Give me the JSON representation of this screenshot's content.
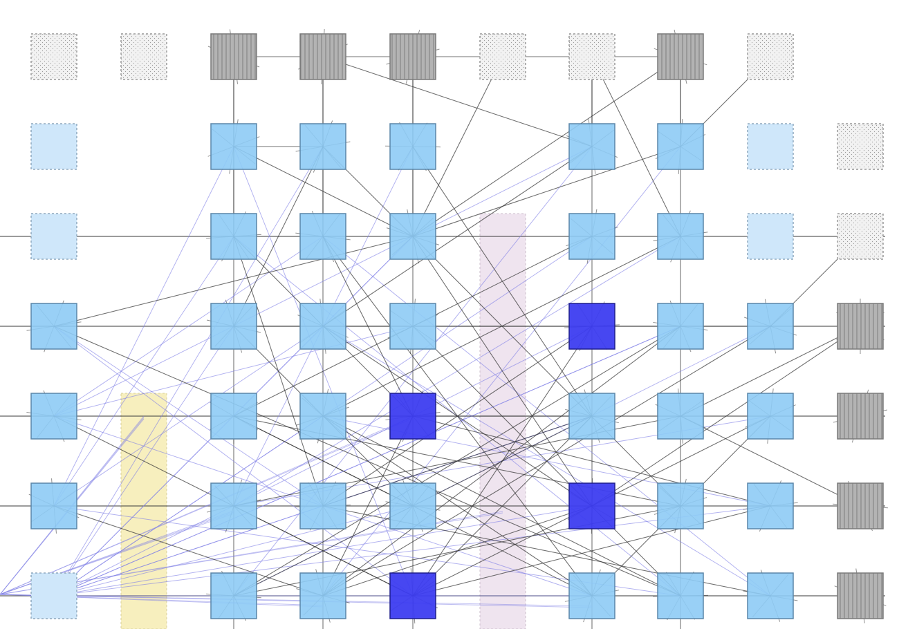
{
  "diagram": {
    "palette": {
      "background": "#ffffff",
      "active_fill": "#8ecbf5",
      "active_stroke": "#5a86a8",
      "inactive_fill": "#cfe7fa",
      "inactive_stroke": "#8fa9be",
      "highlight_fill": "#3d3df0",
      "highlight_stroke": "#1e1e8c",
      "grey_fill": "#b3b3b3",
      "grey_stroke": "#7a7a7a",
      "ghost_fill": "#f2f2f2",
      "ghost_stroke": "#9a9a9a",
      "pink_band": "#efe4ef",
      "yellow_band": "#f7efbe",
      "edge_dark": "#333333",
      "edge_blue": "#7f7fe6"
    },
    "node_types": [
      "empty",
      "ghost",
      "light",
      "blue",
      "highlight",
      "grey"
    ],
    "grid": [
      [
        "ghost",
        "ghost",
        "grey",
        "grey",
        "grey",
        "ghost",
        "ghost",
        "grey",
        "ghost",
        "empty"
      ],
      [
        "light",
        "empty",
        "blue",
        "blue",
        "blue",
        "empty",
        "blue",
        "blue",
        "light",
        "ghost"
      ],
      [
        "light",
        "empty",
        "blue",
        "blue",
        "blue",
        "empty",
        "blue",
        "blue",
        "light",
        "ghost"
      ],
      [
        "blue",
        "empty",
        "blue",
        "blue",
        "blue",
        "empty",
        "highlight",
        "blue",
        "blue",
        "grey"
      ],
      [
        "blue",
        "empty",
        "blue",
        "blue",
        "highlight",
        "empty",
        "blue",
        "blue",
        "blue",
        "grey"
      ],
      [
        "blue",
        "empty",
        "blue",
        "blue",
        "blue",
        "empty",
        "highlight",
        "blue",
        "blue",
        "grey"
      ],
      [
        "light",
        "empty",
        "blue",
        "blue",
        "highlight",
        "empty",
        "blue",
        "blue",
        "blue",
        "grey"
      ]
    ],
    "bands": [
      {
        "type": "yellow",
        "column": 1,
        "from_row": 4,
        "to_row": 6
      },
      {
        "type": "pink",
        "column": 5,
        "from_row": 2,
        "to_row": 6
      }
    ],
    "horizontal_lines_rows": [
      2,
      3,
      4,
      5,
      6
    ],
    "vertical_lines_columns": [
      2,
      3,
      4,
      6,
      7
    ],
    "edges_dark": [
      [
        [
          0,
          2
        ],
        [
          0,
          7
        ]
      ],
      [
        [
          0,
          3
        ],
        [
          1,
          6
        ]
      ],
      [
        [
          0,
          5
        ],
        [
          2,
          4
        ]
      ],
      [
        [
          0,
          7
        ],
        [
          2,
          4
        ]
      ],
      [
        [
          0,
          8
        ],
        [
          1,
          7
        ]
      ],
      [
        [
          0,
          6
        ],
        [
          2,
          7
        ]
      ],
      [
        [
          0,
          2
        ],
        [
          2,
          2
        ]
      ],
      [
        [
          0,
          3
        ],
        [
          2,
          3
        ]
      ],
      [
        [
          0,
          4
        ],
        [
          2,
          4
        ]
      ],
      [
        [
          0,
          6
        ],
        [
          1,
          6
        ]
      ],
      [
        [
          0,
          7
        ],
        [
          1,
          7
        ]
      ],
      [
        [
          1,
          2
        ],
        [
          1,
          3
        ]
      ],
      [
        [
          1,
          2
        ],
        [
          2,
          4
        ]
      ],
      [
        [
          1,
          3
        ],
        [
          2,
          4
        ]
      ],
      [
        [
          1,
          7
        ],
        [
          2,
          4
        ]
      ],
      [
        [
          1,
          6
        ],
        [
          3,
          3
        ]
      ],
      [
        [
          1,
          3
        ],
        [
          3,
          2
        ]
      ],
      [
        [
          2,
          2
        ],
        [
          4,
          4
        ]
      ],
      [
        [
          2,
          3
        ],
        [
          4,
          4
        ]
      ],
      [
        [
          2,
          4
        ],
        [
          5,
          7
        ]
      ],
      [
        [
          2,
          3
        ],
        [
          6,
          6
        ]
      ],
      [
        [
          2,
          2
        ],
        [
          5,
          3
        ]
      ],
      [
        [
          3,
          0
        ],
        [
          2,
          4
        ]
      ],
      [
        [
          3,
          0
        ],
        [
          6,
          7
        ]
      ],
      [
        [
          3,
          2
        ],
        [
          5,
          4
        ]
      ],
      [
        [
          3,
          3
        ],
        [
          5,
          6
        ]
      ],
      [
        [
          3,
          4
        ],
        [
          6,
          7
        ]
      ],
      [
        [
          3,
          6
        ],
        [
          5,
          3
        ]
      ],
      [
        [
          3,
          6
        ],
        [
          6,
          4
        ]
      ],
      [
        [
          3,
          7
        ],
        [
          6,
          2
        ]
      ],
      [
        [
          3,
          8
        ],
        [
          6,
          3
        ]
      ],
      [
        [
          3,
          9
        ],
        [
          4,
          7
        ]
      ],
      [
        [
          3,
          9
        ],
        [
          5,
          6
        ]
      ],
      [
        [
          2,
          9
        ],
        [
          3,
          8
        ]
      ],
      [
        [
          4,
          2
        ],
        [
          6,
          6
        ]
      ],
      [
        [
          4,
          3
        ],
        [
          6,
          7
        ]
      ],
      [
        [
          4,
          4
        ],
        [
          5,
          8
        ]
      ],
      [
        [
          4,
          4
        ],
        [
          6,
          3
        ]
      ],
      [
        [
          4,
          6
        ],
        [
          6,
          4
        ]
      ],
      [
        [
          4,
          7
        ],
        [
          5,
          2
        ]
      ],
      [
        [
          4,
          8
        ],
        [
          6,
          6
        ]
      ],
      [
        [
          4,
          0
        ],
        [
          6,
          4
        ]
      ],
      [
        [
          4,
          6
        ],
        [
          5,
          3
        ]
      ],
      [
        [
          4,
          2
        ],
        [
          5,
          7
        ]
      ],
      [
        [
          4,
          3
        ],
        [
          4,
          6
        ]
      ],
      [
        [
          5,
          0
        ],
        [
          6,
          3
        ]
      ],
      [
        [
          5,
          2
        ],
        [
          6,
          4
        ]
      ],
      [
        [
          5,
          3
        ],
        [
          6,
          8
        ]
      ],
      [
        [
          5,
          6
        ],
        [
          6,
          3
        ]
      ],
      [
        [
          5,
          7
        ],
        [
          6,
          2
        ]
      ],
      [
        [
          5,
          8
        ],
        [
          6,
          4
        ]
      ],
      [
        [
          5,
          9
        ],
        [
          4,
          7
        ]
      ],
      [
        [
          5,
          4
        ],
        [
          4,
          2
        ]
      ],
      [
        [
          6,
          2
        ],
        [
          4,
          6
        ]
      ],
      [
        [
          6,
          3
        ],
        [
          3,
          7
        ]
      ],
      [
        [
          6,
          4
        ],
        [
          4,
          8
        ]
      ],
      [
        [
          6,
          6
        ],
        [
          4,
          3
        ]
      ],
      [
        [
          2,
          7
        ],
        [
          4,
          3
        ]
      ],
      [
        [
          2,
          6
        ],
        [
          4,
          2
        ]
      ],
      [
        [
          1,
          4
        ],
        [
          4,
          6
        ]
      ],
      [
        [
          2,
          4
        ],
        [
          5,
          6
        ]
      ],
      [
        [
          3,
          2
        ],
        [
          3,
          8
        ]
      ]
    ],
    "edges_blue": [
      [
        [
          3,
          0
        ],
        [
          6,
          4
        ]
      ],
      [
        [
          3,
          0
        ],
        [
          5,
          3
        ]
      ],
      [
        [
          4,
          0
        ],
        [
          3,
          4
        ]
      ],
      [
        [
          4,
          0
        ],
        [
          2,
          3
        ]
      ],
      [
        [
          5,
          0
        ],
        [
          3,
          3
        ]
      ],
      [
        [
          5,
          0
        ],
        [
          2,
          2
        ]
      ],
      [
        [
          6,
          0
        ],
        [
          2,
          4
        ]
      ],
      [
        [
          6,
          0
        ],
        [
          3,
          7
        ]
      ],
      [
        [
          6,
          0
        ],
        [
          4,
          6
        ]
      ],
      [
        [
          6,
          0
        ],
        [
          5,
          6
        ]
      ],
      [
        [
          6,
          0
        ],
        [
          4,
          3
        ]
      ],
      [
        [
          6,
          0
        ],
        [
          3,
          2
        ]
      ],
      [
        [
          6,
          0
        ],
        [
          5,
          4
        ]
      ],
      [
        [
          6,
          0
        ],
        [
          6,
          6
        ]
      ],
      [
        [
          5,
          0
        ],
        [
          6,
          7
        ]
      ],
      [
        [
          4,
          0
        ],
        [
          6,
          6
        ]
      ],
      [
        [
          1,
          2
        ],
        [
          5,
          0
        ]
      ],
      [
        [
          1,
          3
        ],
        [
          6,
          0
        ]
      ],
      [
        [
          1,
          4
        ],
        [
          5,
          2
        ]
      ],
      [
        [
          1,
          6
        ],
        [
          6,
          2
        ]
      ],
      [
        [
          1,
          7
        ],
        [
          6,
          3
        ]
      ],
      [
        [
          2,
          6
        ],
        [
          6,
          0
        ]
      ],
      [
        [
          2,
          7
        ],
        [
          5,
          2
        ]
      ],
      [
        [
          3,
          7
        ],
        [
          6,
          0
        ]
      ],
      [
        [
          3,
          8
        ],
        [
          6,
          2
        ]
      ],
      [
        [
          4,
          8
        ],
        [
          5,
          2
        ]
      ],
      [
        [
          5,
          8
        ],
        [
          6,
          0
        ]
      ],
      [
        [
          2,
          3
        ],
        [
          6,
          8
        ]
      ],
      [
        [
          2,
          2
        ],
        [
          6,
          7
        ]
      ],
      [
        [
          3,
          3
        ],
        [
          6,
          8
        ]
      ],
      [
        [
          4,
          3
        ],
        [
          5,
          8
        ]
      ],
      [
        [
          3,
          6
        ],
        [
          6,
          0
        ]
      ],
      [
        [
          4,
          6
        ],
        [
          6,
          0
        ]
      ],
      [
        [
          1,
          2
        ],
        [
          6,
          4
        ]
      ],
      [
        [
          1,
          6
        ],
        [
          4,
          0
        ]
      ],
      [
        [
          2,
          4
        ],
        [
          6,
          0
        ]
      ]
    ]
  }
}
